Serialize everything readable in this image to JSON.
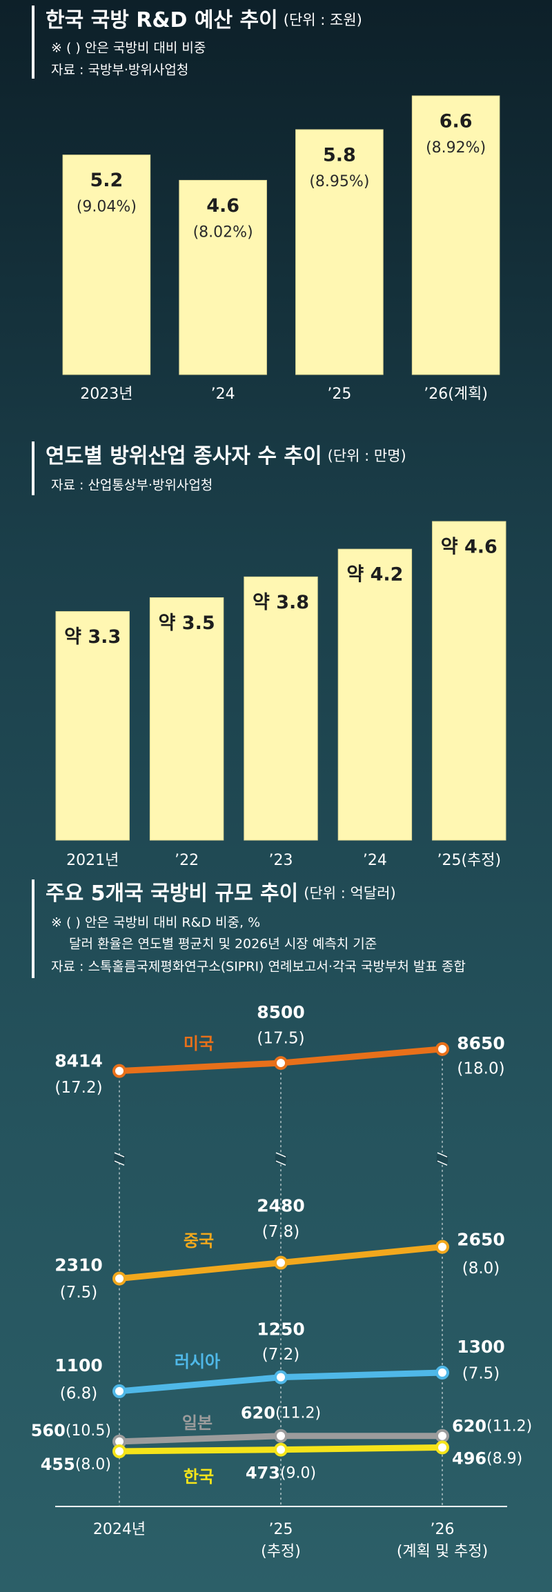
{
  "chart_data": [
    {
      "type": "bar",
      "title": "한국 국방 R&D 예산 추이",
      "unit": "(단위 : 조원)",
      "notes": [
        "※ (   ) 안은 국방비 대비 비중"
      ],
      "source": "자료 : 국방부·방위사업청",
      "categories": [
        "2023년",
        "’24",
        "’25",
        "’26(계획)"
      ],
      "values": [
        5.2,
        4.6,
        5.8,
        6.6
      ],
      "shares": [
        9.04,
        8.02,
        8.95,
        8.92
      ],
      "share_labels": [
        "(9.04%)",
        "(8.02%)",
        "(8.95%)",
        "(8.92%)"
      ],
      "color": "#fff7b2"
    },
    {
      "type": "bar",
      "title": "연도별 방위산업 종사자 수 추이",
      "unit": "(단위 : 만명)",
      "source": "자료 : 산업통상부·방위사업청",
      "categories": [
        "2021년",
        "’22",
        "’23",
        "’24",
        "’25(추정)"
      ],
      "values": [
        3.3,
        3.5,
        3.8,
        4.2,
        4.6
      ],
      "value_labels": [
        "약 3.3",
        "약 3.5",
        "약 3.8",
        "약 4.2",
        "약 4.6"
      ],
      "color": "#fff7b2"
    },
    {
      "type": "line",
      "title": "주요 5개국 국방비 규모 추이",
      "unit": "(단위 : 억달러)",
      "notes": [
        "※ (   ) 안은 국방비 대비 R&D 비중, %",
        "달러 환율은 연도별 평균치 및 2026년 시장 예측치 기준"
      ],
      "source": "자료 : 스톡홀름국제평화연구소(SIPRI) 연례보고서·각국 국방부처 발표 종합",
      "categories": [
        "2024년",
        "’25",
        "’26"
      ],
      "category_notes": [
        null,
        "(추정)",
        "(계획 및 추정)"
      ],
      "axis_break": true,
      "series": [
        {
          "name": "미국",
          "color": "#e8701a",
          "values": [
            8414,
            8500,
            8650
          ],
          "shares": [
            17.2,
            17.5,
            18.0
          ],
          "share_labels": [
            "(17.2)",
            "(17.5)",
            "(18.0)"
          ]
        },
        {
          "name": "중국",
          "color": "#f2a81d",
          "values": [
            2310,
            2480,
            2650
          ],
          "shares": [
            7.5,
            7.8,
            8.0
          ],
          "share_labels": [
            "(7.5)",
            "(7.8)",
            "(8.0)"
          ]
        },
        {
          "name": "러시아",
          "color": "#4fb8e8",
          "values": [
            1100,
            1250,
            1300
          ],
          "shares": [
            6.8,
            7.2,
            7.5
          ],
          "share_labels": [
            "(6.8)",
            "(7.2)",
            "(7.5)"
          ]
        },
        {
          "name": "일본",
          "color": "#9c9c9c",
          "values": [
            560,
            620,
            620
          ],
          "shares": [
            10.5,
            11.2,
            11.2
          ],
          "share_labels": [
            "(10.5)",
            "(11.2)",
            "(11.2)"
          ]
        },
        {
          "name": "한국",
          "color": "#f5e41a",
          "values": [
            455,
            473,
            496
          ],
          "shares": [
            8.0,
            9.0,
            8.9
          ],
          "share_labels": [
            "(8.0)",
            "(9.0)",
            "(8.9)"
          ]
        }
      ]
    }
  ]
}
